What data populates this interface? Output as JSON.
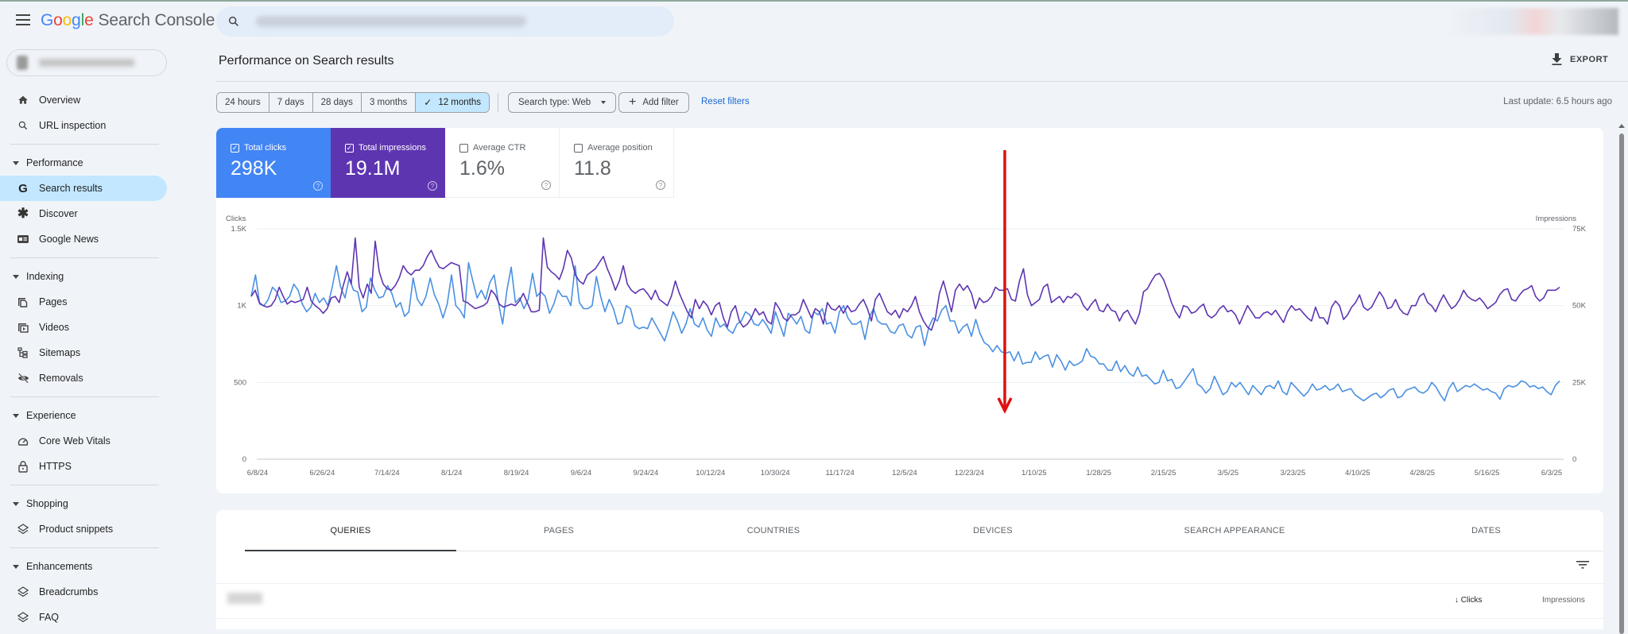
{
  "app": {
    "title_google": "Google",
    "title_product": "Search Console",
    "search_placeholder": ""
  },
  "sidebar": {
    "top_items": [
      {
        "label": "Overview",
        "icon": "home-icon"
      },
      {
        "label": "URL inspection",
        "icon": "search-icon"
      }
    ],
    "sections": [
      {
        "label": "Performance",
        "items": [
          {
            "label": "Search results",
            "icon": "google-g-icon",
            "active": true
          },
          {
            "label": "Discover",
            "icon": "asterisk-icon"
          },
          {
            "label": "Google News",
            "icon": "news-icon"
          }
        ]
      },
      {
        "label": "Indexing",
        "items": [
          {
            "label": "Pages",
            "icon": "pages-icon"
          },
          {
            "label": "Videos",
            "icon": "video-icon"
          },
          {
            "label": "Sitemaps",
            "icon": "sitemap-icon"
          },
          {
            "label": "Removals",
            "icon": "eye-off-icon"
          }
        ]
      },
      {
        "label": "Experience",
        "items": [
          {
            "label": "Core Web Vitals",
            "icon": "gauge-icon"
          },
          {
            "label": "HTTPS",
            "icon": "lock-icon"
          }
        ]
      },
      {
        "label": "Shopping",
        "items": [
          {
            "label": "Product snippets",
            "icon": "layers-icon"
          }
        ]
      },
      {
        "label": "Enhancements",
        "items": [
          {
            "label": "Breadcrumbs",
            "icon": "layers-icon"
          },
          {
            "label": "FAQ",
            "icon": "layers-icon"
          }
        ]
      }
    ]
  },
  "page": {
    "title": "Performance on Search results",
    "export_label": "EXPORT",
    "last_update": "Last update: 6.5 hours ago"
  },
  "filters": {
    "ranges": [
      "24 hours",
      "7 days",
      "28 days",
      "3 months",
      "12 months"
    ],
    "selected_range": "12 months",
    "search_type": "Search type: Web",
    "add_filter": "Add filter",
    "reset": "Reset filters"
  },
  "metrics": [
    {
      "label": "Total clicks",
      "value": "298K",
      "checked": true,
      "color": "#4285f4"
    },
    {
      "label": "Total impressions",
      "value": "19.1M",
      "checked": true,
      "color": "#5e35b1"
    },
    {
      "label": "Average CTR",
      "value": "1.6%",
      "checked": false
    },
    {
      "label": "Average position",
      "value": "11.8",
      "checked": false
    }
  ],
  "chart_data": {
    "type": "line",
    "title": "",
    "xlabel": "",
    "ylabel": "Clicks",
    "ylabel_right": "Impressions",
    "ylim": [
      0,
      1500
    ],
    "ylim_right": [
      0,
      75000
    ],
    "y_ticks": [
      "0",
      "500",
      "1K",
      "1.5K"
    ],
    "y_ticks_right": [
      "0",
      "25K",
      "50K",
      "75K"
    ],
    "x_tick_labels": [
      "6/8/24",
      "6/26/24",
      "7/14/24",
      "8/1/24",
      "8/19/24",
      "9/6/24",
      "9/24/24",
      "10/12/24",
      "10/30/24",
      "11/17/24",
      "12/5/24",
      "12/23/24",
      "1/10/25",
      "1/28/25",
      "2/15/25",
      "3/5/25",
      "3/23/25",
      "4/10/25",
      "4/28/25",
      "5/16/25",
      "6/3/25"
    ],
    "grid": true,
    "legend": "metric cards above chart",
    "annotation": "red downward arrow near 1/1/25",
    "series": [
      {
        "name": "Clicks",
        "axis": "left",
        "color": "#4a90e2",
        "values": [
          1060,
          1200,
          1010,
          1000,
          1040,
          1120,
          1090,
          1020,
          1030,
          1060,
          1140,
          1100,
          1010,
          960,
          990,
          1080,
          1020,
          1050,
          1000,
          1120,
          1260,
          1120,
          1050,
          1180,
          1100,
          1090,
          960,
          990,
          1180,
          1100,
          1050,
          1060,
          1130,
          1080,
          990,
          1020,
          930,
          960,
          1180,
          1040,
          1000,
          1060,
          1180,
          1070,
          1010,
          920,
          1010,
          1200,
          1000,
          970,
          920,
          1280,
          1160,
          1050,
          1100,
          1040,
          1150,
          1200,
          1020,
          880,
          1100,
          1250,
          1020,
          1050,
          980,
          1040,
          1210,
          1060,
          1090,
          1060,
          950,
          1010,
          1100,
          1060,
          1060,
          1000,
          1260,
          1020,
          980,
          980,
          1000,
          1190,
          1060,
          960,
          1040,
          980,
          880,
          890,
          1000,
          980,
          870,
          850,
          860,
          850,
          920,
          870,
          820,
          770,
          860,
          960,
          900,
          820,
          880,
          980,
          880,
          860,
          920,
          840,
          800,
          920,
          860,
          880,
          840,
          820,
          880,
          900,
          960,
          940,
          880,
          870,
          910,
          870,
          820,
          960,
          880,
          800,
          950,
          920,
          880,
          930,
          840,
          820,
          960,
          940,
          980,
          880,
          890,
          820,
          960,
          1000,
          920,
          880,
          880,
          900,
          780,
          920,
          980,
          900,
          880,
          880,
          830,
          820,
          870,
          880,
          810,
          790,
          860,
          870,
          740,
          860,
          920,
          900,
          970,
          1000,
          900,
          900,
          820,
          860,
          880,
          800,
          910,
          820,
          760,
          740,
          700,
          740,
          700,
          690,
          700,
          640,
          700,
          620,
          630,
          630,
          700,
          650,
          670,
          680,
          600,
          680,
          640,
          580,
          640,
          610,
          620,
          640,
          720,
          670,
          660,
          620,
          620,
          580,
          580,
          640,
          570,
          610,
          560,
          540,
          600,
          540,
          550,
          520,
          490,
          500,
          580,
          510,
          520,
          460,
          470,
          510,
          550,
          590,
          490,
          470,
          430,
          460,
          540,
          480,
          420,
          440,
          500,
          470,
          500,
          460,
          420,
          480,
          450,
          420,
          470,
          480,
          460,
          510,
          440,
          420,
          500,
          470,
          440,
          410,
          440,
          490,
          450,
          460,
          480,
          450,
          460,
          490,
          440,
          450,
          460,
          420,
          400,
          380,
          400,
          420,
          430,
          400,
          420,
          450,
          460,
          400,
          410,
          450,
          460,
          470,
          440,
          430,
          450,
          500,
          470,
          420,
          380,
          460,
          500,
          440,
          460,
          480,
          470,
          490,
          470,
          450,
          460,
          440,
          430,
          390,
          460,
          480,
          470,
          480,
          510,
          500,
          470,
          480,
          460,
          470,
          440,
          420,
          480,
          510
        ]
      },
      {
        "name": "Impressions",
        "axis": "right",
        "color": "#5e35b1",
        "values": [
          53000,
          55000,
          51000,
          50000,
          49500,
          50000,
          52000,
          56000,
          53000,
          50500,
          51500,
          51000,
          51500,
          52000,
          56000,
          51500,
          50000,
          49000,
          47500,
          49000,
          52500,
          53000,
          51000,
          56500,
          61000,
          57000,
          72000,
          56000,
          52500,
          57000,
          54000,
          71000,
          61000,
          57000,
          55500,
          55000,
          56500,
          59000,
          63000,
          61000,
          60000,
          61500,
          61500,
          63000,
          66000,
          68000,
          65000,
          62500,
          62000,
          63000,
          64000,
          63500,
          63000,
          51500,
          51000,
          50000,
          49000,
          49500,
          50000,
          51000,
          55000,
          53500,
          50500,
          49500,
          50000,
          50500,
          50000,
          51500,
          54000,
          51000,
          48000,
          48000,
          48500,
          72000,
          62500,
          61000,
          60000,
          58500,
          62000,
          68000,
          65500,
          60000,
          58000,
          57000,
          60000,
          61000,
          62000,
          64000,
          66000,
          62000,
          59000,
          55000,
          58000,
          63000,
          57000,
          55000,
          54000,
          55000,
          55500,
          54000,
          52000,
          55000,
          52000,
          51000,
          50000,
          53000,
          58000,
          54000,
          51000,
          48000,
          46000,
          52000,
          49000,
          51500,
          50000,
          47000,
          50000,
          51000,
          46000,
          43000,
          48000,
          50000,
          45000,
          43000,
          44000,
          46000,
          49000,
          47000,
          48000,
          45000,
          44000,
          51000,
          49000,
          46000,
          45000,
          47000,
          47000,
          48000,
          52000,
          49000,
          46000,
          49000,
          48000,
          44000,
          51000,
          49000,
          48500,
          50000,
          47500,
          50000,
          48000,
          48500,
          50500,
          52000,
          49000,
          45000,
          52000,
          54000,
          51000,
          48000,
          47000,
          48500,
          46000,
          49000,
          48000,
          50000,
          53000,
          48000,
          45000,
          43000,
          42000,
          46000,
          54000,
          58000,
          53000,
          48000,
          55000,
          57000,
          55000,
          56500,
          54000,
          49000,
          52500,
          51000,
          51500,
          53000,
          56000,
          55000,
          55000,
          55500,
          52000,
          51500,
          58000,
          62000,
          53500,
          50000,
          51000,
          52000,
          56000,
          57000,
          51000,
          52000,
          53000,
          51000,
          53000,
          52500,
          54000,
          53000,
          50000,
          48500,
          50500,
          52000,
          48500,
          48000,
          50500,
          48500,
          48000,
          45000,
          47500,
          48500,
          46000,
          44000,
          47500,
          54500,
          55500,
          58000,
          60000,
          60500,
          58500,
          55000,
          51000,
          48000,
          46000,
          50000,
          49500,
          47500,
          48000,
          49500,
          50500,
          47000,
          46000,
          47000,
          49000,
          50000,
          48000,
          48500,
          47000,
          44000,
          47000,
          50000,
          48000,
          46000,
          46000,
          47500,
          48000,
          47000,
          48500,
          46500,
          44500,
          48000,
          50000,
          48500,
          49000,
          47500,
          46000,
          45000,
          49500,
          46000,
          46000,
          44000,
          49500,
          51500,
          50000,
          45500,
          47000,
          49500,
          51000,
          53500,
          49500,
          48500,
          49500,
          52000,
          54500,
          52500,
          49000,
          49500,
          52000,
          49000,
          47500,
          47000,
          50000,
          50000,
          53000,
          54000,
          51000,
          50000,
          48000,
          51000,
          53500,
          51000,
          49000,
          50000,
          52000,
          55000,
          53000,
          52000,
          51500,
          52500,
          51000,
          49000,
          50000,
          51000,
          53500,
          55000,
          55500,
          52000,
          51500,
          53500,
          55000,
          55500,
          56500,
          53000,
          51500,
          52500,
          55000,
          55000,
          55000,
          56000
        ]
      }
    ]
  },
  "tabs": {
    "items": [
      "QUERIES",
      "PAGES",
      "COUNTRIES",
      "DEVICES",
      "SEARCH APPEARANCE",
      "DATES"
    ],
    "active": "QUERIES"
  },
  "table": {
    "columns": {
      "clicks": "Clicks",
      "impressions": "Impressions"
    },
    "sort_indicator": "↓"
  }
}
